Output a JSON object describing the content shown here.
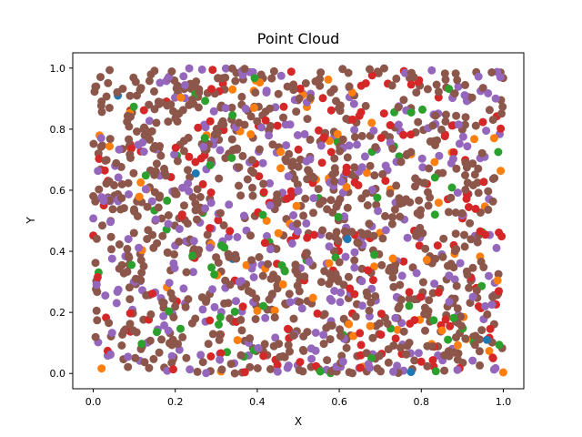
{
  "chart_data": {
    "type": "scatter",
    "title": "Point Cloud",
    "xlabel": "X",
    "ylabel": "Y",
    "xlim": [
      -0.05,
      1.05
    ],
    "ylim": [
      -0.05,
      1.05
    ],
    "xticks": [
      "0.0",
      "0.2",
      "0.4",
      "0.6",
      "0.8",
      "1.0"
    ],
    "yticks": [
      "0.0",
      "0.2",
      "0.4",
      "0.6",
      "0.8",
      "1.0"
    ],
    "xtick_values": [
      0.0,
      0.2,
      0.4,
      0.6,
      0.8,
      1.0
    ],
    "ytick_values": [
      0.0,
      0.2,
      0.4,
      0.6,
      0.8,
      1.0
    ],
    "grid": false,
    "legend": "none",
    "point_count_approx": 1500,
    "series": [
      {
        "color": "#1f77b4",
        "count": 6,
        "points": [
          [
            0.25,
            0.655
          ],
          [
            0.775,
            0.005
          ],
          [
            0.34,
            0.375
          ],
          [
            0.06,
            0.91
          ],
          [
            0.96,
            0.11
          ],
          [
            0.62,
            0.44
          ]
        ]
      },
      {
        "color": "#ff7f0e",
        "count": 80
      },
      {
        "color": "#2ca02c",
        "count": 70
      },
      {
        "color": "#d62728",
        "count": 180
      },
      {
        "color": "#9467bd",
        "count": 330
      },
      {
        "color": "#8c564b",
        "count": 860
      }
    ],
    "generation": {
      "seed": 12345,
      "distribution": "uniform",
      "x_range": [
        0,
        1
      ],
      "y_range": [
        0,
        1
      ]
    }
  }
}
